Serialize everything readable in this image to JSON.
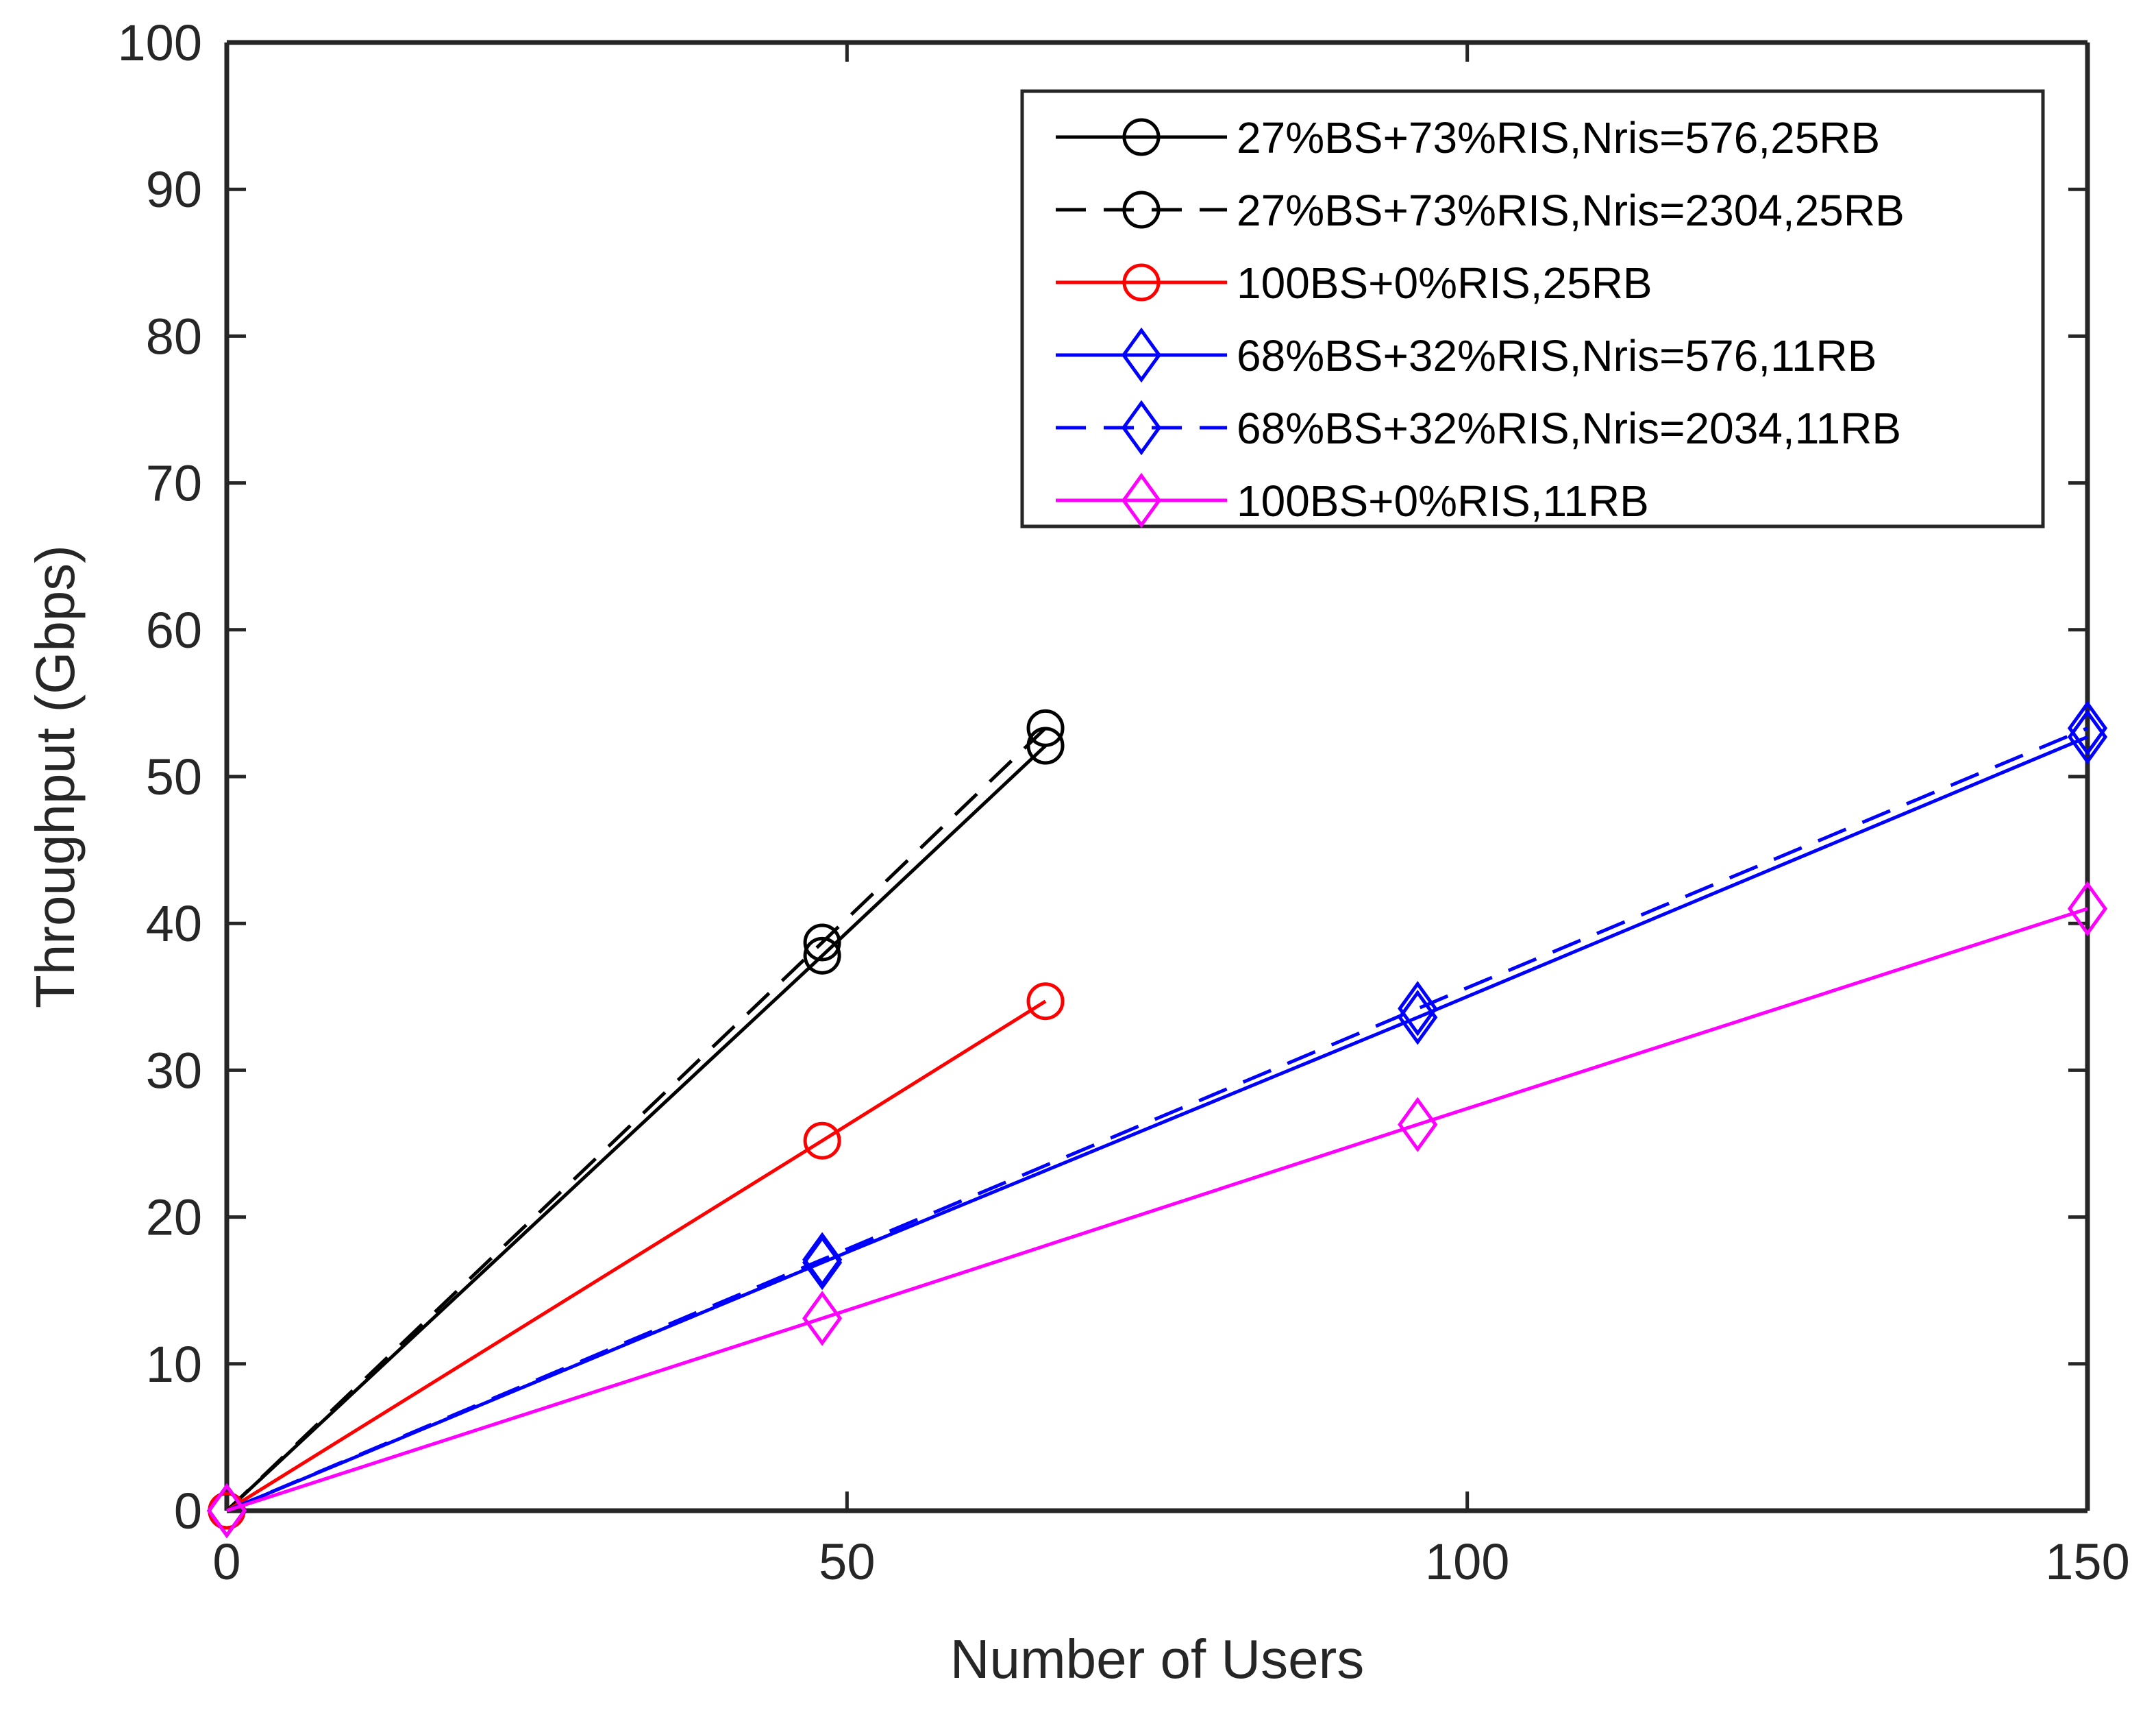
{
  "chart_data": {
    "type": "line",
    "title": "",
    "xlabel": "Number of Users",
    "ylabel": "Throughput (Gbps)",
    "xlim": [
      0,
      150
    ],
    "ylim": [
      0,
      100
    ],
    "xticks": [
      0,
      50,
      100,
      150
    ],
    "yticks": [
      0,
      10,
      20,
      30,
      40,
      50,
      60,
      70,
      80,
      90,
      100
    ],
    "grid": false,
    "legend_position": "upper right",
    "series": [
      {
        "name": "27%BS+73%RIS,Nris=576,25RB",
        "color": "#000000",
        "line_style": "solid",
        "marker": "circle",
        "x": [
          0,
          48,
          66
        ],
        "y": [
          0,
          37.8,
          52.1
        ]
      },
      {
        "name": "27%BS+73%RIS,Nris=2304,25RB",
        "color": "#000000",
        "line_style": "dashed",
        "marker": "circle",
        "x": [
          0,
          48,
          66
        ],
        "y": [
          0,
          38.7,
          53.3
        ]
      },
      {
        "name": "100BS+0%RIS,25RB",
        "color": "#ff0000",
        "line_style": "solid",
        "marker": "circle",
        "x": [
          0,
          48,
          66
        ],
        "y": [
          0,
          25.2,
          34.7
        ]
      },
      {
        "name": "68%BS+32%RIS,Nris=576,11RB",
        "color": "#0000ff",
        "line_style": "solid",
        "marker": "diamond",
        "x": [
          0,
          48,
          96,
          150
        ],
        "y": [
          0,
          16.9,
          33.6,
          52.7
        ]
      },
      {
        "name": "68%BS+32%RIS,Nris=2034,11RB",
        "color": "#0000ff",
        "line_style": "dashed",
        "marker": "diamond",
        "x": [
          0,
          48,
          96,
          150
        ],
        "y": [
          0,
          17.1,
          34.2,
          53.3
        ]
      },
      {
        "name": "100BS+0%RIS,11RB",
        "color": "#ff00ff",
        "line_style": "solid",
        "marker": "diamond",
        "x": [
          0,
          48,
          96,
          150
        ],
        "y": [
          0,
          13.1,
          26.3,
          41.0
        ]
      }
    ]
  },
  "axes": {
    "x_title": "Number of Users",
    "y_title": "Throughput (Gbps)",
    "x_tick_labels": [
      "0",
      "50",
      "100",
      "150"
    ],
    "y_tick_labels": [
      "0",
      "10",
      "20",
      "30",
      "40",
      "50",
      "60",
      "70",
      "80",
      "90",
      "100"
    ]
  },
  "legend": {
    "entries": [
      "27%BS+73%RIS,Nris=576,25RB",
      "27%BS+73%RIS,Nris=2304,25RB",
      "100BS+0%RIS,25RB",
      "68%BS+32%RIS,Nris=576,11RB",
      "68%BS+32%RIS,Nris=2034,11RB",
      "100BS+0%RIS,11RB"
    ]
  },
  "colors": {
    "axis": "#262626",
    "black": "#000000",
    "red": "#ff0000",
    "blue": "#0000ff",
    "magenta": "#ff00ff"
  }
}
